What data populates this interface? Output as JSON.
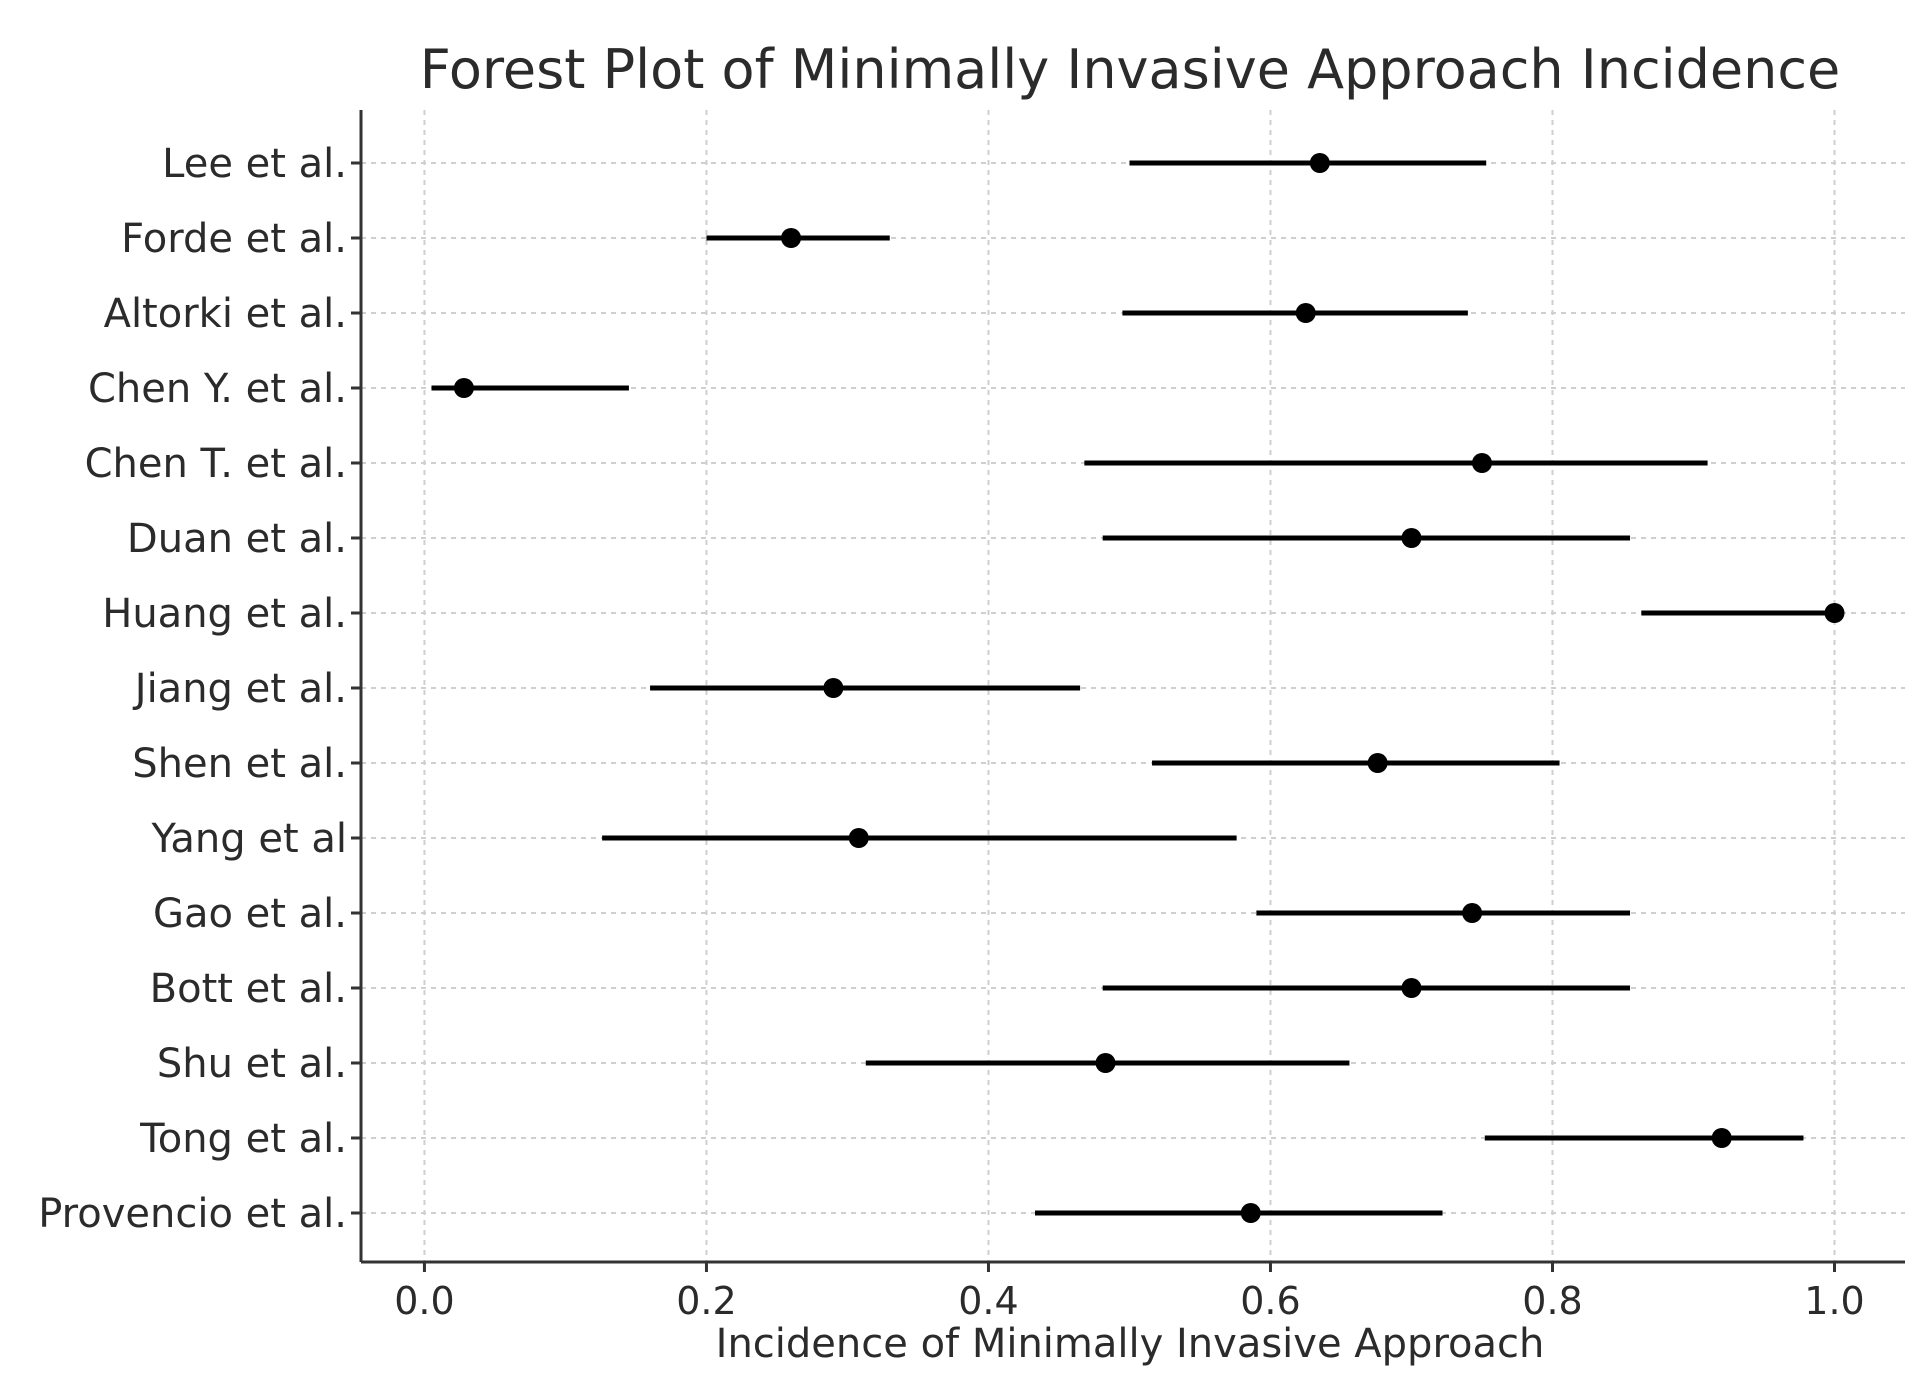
{
  "chart_data": {
    "type": "forest",
    "title": "Forest Plot of Minimally Invasive Approach Incidence",
    "xlabel": "Incidence of Minimally Invasive Approach",
    "ylabel": "",
    "xlim": [
      -0.045,
      1.05
    ],
    "x_ticks": [
      0.0,
      0.2,
      0.4,
      0.6,
      0.8,
      1.0
    ],
    "x_tick_labels": [
      "0.0",
      "0.2",
      "0.4",
      "0.6",
      "0.8",
      "1.0"
    ],
    "grid": true,
    "studies": [
      {
        "label": "Lee et al.",
        "estimate": 0.635,
        "ci_low": 0.5,
        "ci_high": 0.753
      },
      {
        "label": "Forde et al.",
        "estimate": 0.26,
        "ci_low": 0.2,
        "ci_high": 0.33
      },
      {
        "label": "Altorki et al.",
        "estimate": 0.625,
        "ci_low": 0.495,
        "ci_high": 0.74
      },
      {
        "label": "Chen Y. et al.",
        "estimate": 0.028,
        "ci_low": 0.005,
        "ci_high": 0.145
      },
      {
        "label": "Chen T. et al.",
        "estimate": 0.75,
        "ci_low": 0.468,
        "ci_high": 0.91
      },
      {
        "label": "Duan et al.",
        "estimate": 0.7,
        "ci_low": 0.481,
        "ci_high": 0.855
      },
      {
        "label": "Huang et al.",
        "estimate": 1.0,
        "ci_low": 0.863,
        "ci_high": 1.0
      },
      {
        "label": "Jiang et al.",
        "estimate": 0.29,
        "ci_low": 0.16,
        "ci_high": 0.465
      },
      {
        "label": "Shen et al.",
        "estimate": 0.676,
        "ci_low": 0.516,
        "ci_high": 0.805
      },
      {
        "label": "Yang et al",
        "estimate": 0.308,
        "ci_low": 0.126,
        "ci_high": 0.576
      },
      {
        "label": "Gao et al.",
        "estimate": 0.743,
        "ci_low": 0.59,
        "ci_high": 0.855
      },
      {
        "label": "Bott et al.",
        "estimate": 0.7,
        "ci_low": 0.481,
        "ci_high": 0.855
      },
      {
        "label": "Shu et al.",
        "estimate": 0.483,
        "ci_low": 0.313,
        "ci_high": 0.656
      },
      {
        "label": "Tong et al.",
        "estimate": 0.92,
        "ci_low": 0.752,
        "ci_high": 0.978
      },
      {
        "label": "Provencio et al.",
        "estimate": 0.586,
        "ci_low": 0.433,
        "ci_high": 0.722
      }
    ]
  }
}
